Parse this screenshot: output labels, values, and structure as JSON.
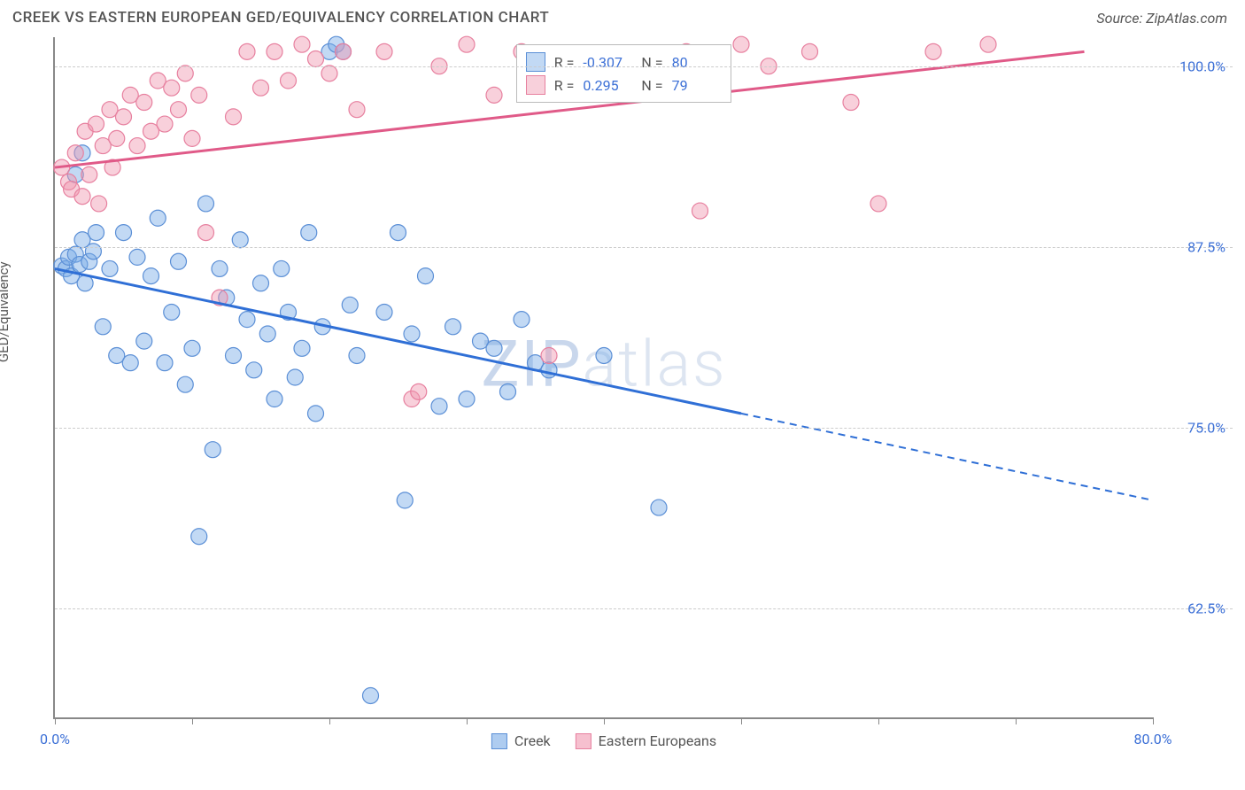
{
  "header": {
    "title": "CREEK VS EASTERN EUROPEAN GED/EQUIVALENCY CORRELATION CHART",
    "source": "Source: ZipAtlas.com"
  },
  "watermark": {
    "prefix": "ZIP",
    "suffix": "atlas"
  },
  "chart": {
    "type": "scatter",
    "y_axis_label": "GED/Equivalency",
    "xlim": [
      0,
      80
    ],
    "ylim": [
      55,
      102
    ],
    "x_ticks": [
      0,
      10,
      20,
      30,
      40,
      50,
      60,
      70,
      80
    ],
    "x_tick_labels": {
      "0": "0.0%",
      "80": "80.0%"
    },
    "y_gridlines": [
      62.5,
      75.0,
      87.5,
      100.0
    ],
    "y_tick_labels": [
      "62.5%",
      "75.0%",
      "87.5%",
      "100.0%"
    ],
    "background_color": "#ffffff",
    "grid_color": "#cccccc",
    "axis_color": "#888888",
    "tick_label_color": "#3b6fd6",
    "marker_radius": 9,
    "marker_stroke_width": 1.2,
    "series": [
      {
        "name": "Creek",
        "fill": "rgba(120,170,230,0.45)",
        "stroke": "#5b8fd6",
        "trend_color": "#2f6fd6",
        "trend_width": 3,
        "R": "-0.307",
        "N": "80",
        "trend": {
          "x1": 0,
          "y1": 86.0,
          "x2": 50,
          "y2": 76.0,
          "x2_ext": 80,
          "y2_ext": 70.0
        },
        "points": [
          [
            0.5,
            86.2
          ],
          [
            0.8,
            86.0
          ],
          [
            1.0,
            86.8
          ],
          [
            1.2,
            85.5
          ],
          [
            1.5,
            87.0
          ],
          [
            1.8,
            86.3
          ],
          [
            2.0,
            88.0
          ],
          [
            2.2,
            85.0
          ],
          [
            2.5,
            86.5
          ],
          [
            2.8,
            87.2
          ],
          [
            1.5,
            92.5
          ],
          [
            2.0,
            94.0
          ],
          [
            3.0,
            88.5
          ],
          [
            3.5,
            82.0
          ],
          [
            4.0,
            86.0
          ],
          [
            4.5,
            80.0
          ],
          [
            5.0,
            88.5
          ],
          [
            5.5,
            79.5
          ],
          [
            6.0,
            86.8
          ],
          [
            6.5,
            81.0
          ],
          [
            7.0,
            85.5
          ],
          [
            7.5,
            89.5
          ],
          [
            8.0,
            79.5
          ],
          [
            8.5,
            83.0
          ],
          [
            9.0,
            86.5
          ],
          [
            9.5,
            78.0
          ],
          [
            10.0,
            80.5
          ],
          [
            10.5,
            67.5
          ],
          [
            11.0,
            90.5
          ],
          [
            11.5,
            73.5
          ],
          [
            12.0,
            86.0
          ],
          [
            12.5,
            84.0
          ],
          [
            13.0,
            80.0
          ],
          [
            13.5,
            88.0
          ],
          [
            14.0,
            82.5
          ],
          [
            14.5,
            79.0
          ],
          [
            15.0,
            85.0
          ],
          [
            15.5,
            81.5
          ],
          [
            16.0,
            77.0
          ],
          [
            16.5,
            86.0
          ],
          [
            17.0,
            83.0
          ],
          [
            17.5,
            78.5
          ],
          [
            18.0,
            80.5
          ],
          [
            18.5,
            88.5
          ],
          [
            19.0,
            76.0
          ],
          [
            19.5,
            82.0
          ],
          [
            20.0,
            101.0
          ],
          [
            20.5,
            101.5
          ],
          [
            21.0,
            101.0
          ],
          [
            21.5,
            83.5
          ],
          [
            22.0,
            80.0
          ],
          [
            23.0,
            56.5
          ],
          [
            24.0,
            83.0
          ],
          [
            25.0,
            88.5
          ],
          [
            25.5,
            70.0
          ],
          [
            26.0,
            81.5
          ],
          [
            27.0,
            85.5
          ],
          [
            28.0,
            76.5
          ],
          [
            29.0,
            82.0
          ],
          [
            30.0,
            77.0
          ],
          [
            31.0,
            81.0
          ],
          [
            32.0,
            80.5
          ],
          [
            33.0,
            77.5
          ],
          [
            34.0,
            82.5
          ],
          [
            35.0,
            79.5
          ],
          [
            36.0,
            79.0
          ],
          [
            40.0,
            80.0
          ],
          [
            44.0,
            69.5
          ]
        ]
      },
      {
        "name": "Eastern Europeans",
        "fill": "rgba(240,150,175,0.45)",
        "stroke": "#e7809f",
        "trend_color": "#e05a88",
        "trend_width": 3,
        "R": "0.295",
        "N": "79",
        "trend": {
          "x1": 0,
          "y1": 93.0,
          "x2": 75,
          "y2": 101.0,
          "x2_ext": 75,
          "y2_ext": 101.0
        },
        "points": [
          [
            0.5,
            93.0
          ],
          [
            1.0,
            92.0
          ],
          [
            1.2,
            91.5
          ],
          [
            1.5,
            94.0
          ],
          [
            2.0,
            91.0
          ],
          [
            2.2,
            95.5
          ],
          [
            2.5,
            92.5
          ],
          [
            3.0,
            96.0
          ],
          [
            3.2,
            90.5
          ],
          [
            3.5,
            94.5
          ],
          [
            4.0,
            97.0
          ],
          [
            4.2,
            93.0
          ],
          [
            4.5,
            95.0
          ],
          [
            5.0,
            96.5
          ],
          [
            5.5,
            98.0
          ],
          [
            6.0,
            94.5
          ],
          [
            6.5,
            97.5
          ],
          [
            7.0,
            95.5
          ],
          [
            7.5,
            99.0
          ],
          [
            8.0,
            96.0
          ],
          [
            8.5,
            98.5
          ],
          [
            9.0,
            97.0
          ],
          [
            9.5,
            99.5
          ],
          [
            10.0,
            95.0
          ],
          [
            10.5,
            98.0
          ],
          [
            11.0,
            88.5
          ],
          [
            12.0,
            84.0
          ],
          [
            13.0,
            96.5
          ],
          [
            14.0,
            101.0
          ],
          [
            15.0,
            98.5
          ],
          [
            16.0,
            101.0
          ],
          [
            17.0,
            99.0
          ],
          [
            18.0,
            101.5
          ],
          [
            19.0,
            100.5
          ],
          [
            20.0,
            99.5
          ],
          [
            21.0,
            101.0
          ],
          [
            22.0,
            97.0
          ],
          [
            24.0,
            101.0
          ],
          [
            26.0,
            77.0
          ],
          [
            26.5,
            77.5
          ],
          [
            28.0,
            100.0
          ],
          [
            30.0,
            101.5
          ],
          [
            32.0,
            98.0
          ],
          [
            34.0,
            101.0
          ],
          [
            36.0,
            80.0
          ],
          [
            38.0,
            100.5
          ],
          [
            42.0,
            99.0
          ],
          [
            46.0,
            101.0
          ],
          [
            47.0,
            90.0
          ],
          [
            50.0,
            101.5
          ],
          [
            52.0,
            100.0
          ],
          [
            55.0,
            101.0
          ],
          [
            58.0,
            97.5
          ],
          [
            60.0,
            90.5
          ],
          [
            64.0,
            101.0
          ],
          [
            68.0,
            101.5
          ]
        ]
      }
    ],
    "legend_bottom": [
      {
        "label": "Creek",
        "fill": "rgba(120,170,230,0.6)",
        "stroke": "#5b8fd6"
      },
      {
        "label": "Eastern Europeans",
        "fill": "rgba(240,150,175,0.6)",
        "stroke": "#e7809f"
      }
    ]
  }
}
